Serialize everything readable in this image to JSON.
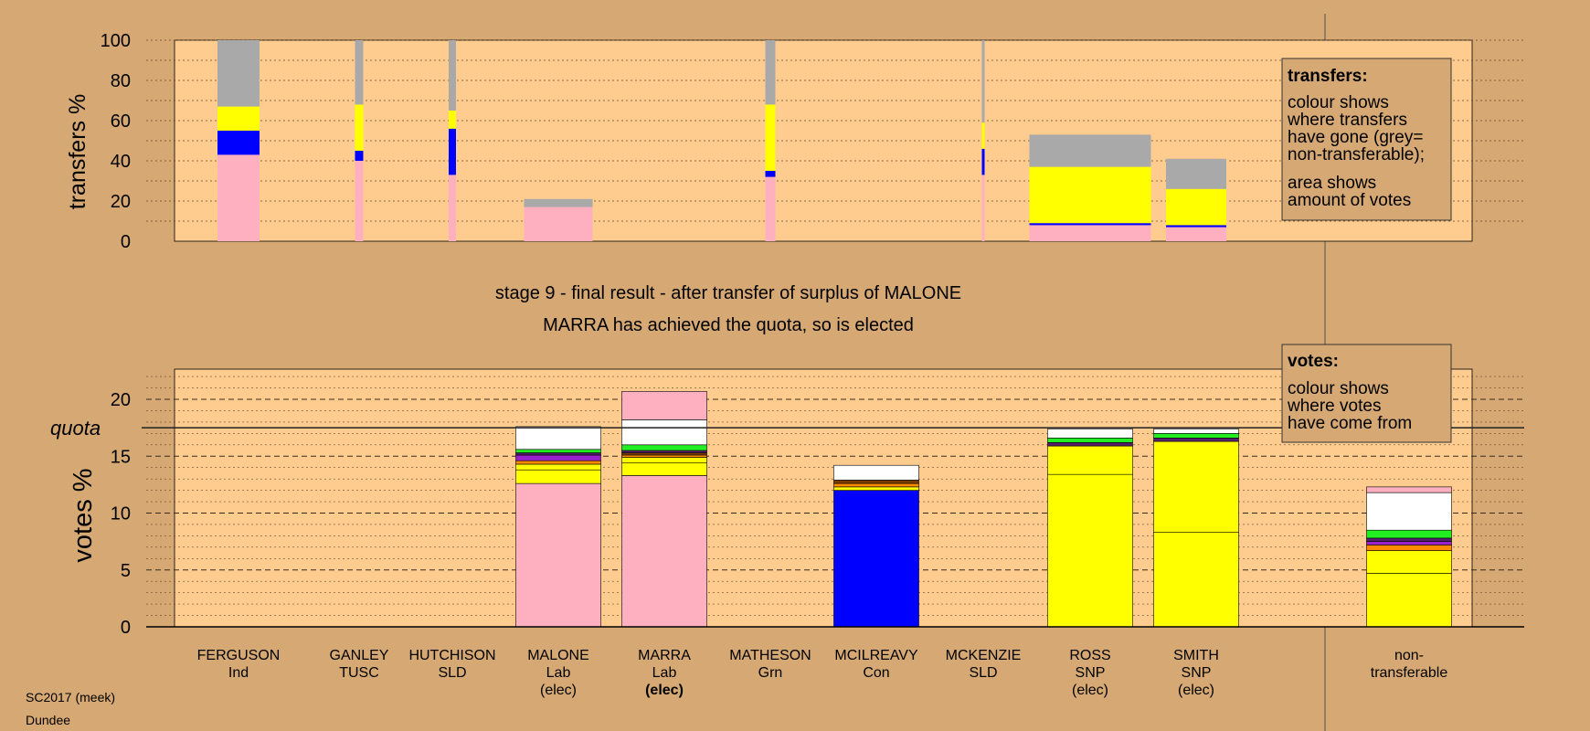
{
  "header": {
    "stage_line": "stage 9 - final result - after transfer of surplus of MALONE",
    "elected_line": "MARRA has achieved the quota, so is elected"
  },
  "footer": {
    "election": "SC2017 (meek)",
    "place": "Dundee"
  },
  "colors": {
    "pink": "#ffb0c0",
    "blue": "#0000ff",
    "yellow": "#ffff00",
    "grey": "#a9a9a9",
    "white": "#ffffff",
    "green": "#22ee22",
    "purple": "#9a22cc",
    "darkpurple": "#55206a",
    "orange": "#ff8c00",
    "brown": "#7a3b00",
    "panel": "#ffcc90",
    "bg": "#d5a874"
  },
  "candidates": [
    {
      "name": "FERGUSON",
      "party": "Ind",
      "status": ""
    },
    {
      "name": "GANLEY",
      "party": "TUSC",
      "status": ""
    },
    {
      "name": "HUTCHISON",
      "party": "SLD",
      "status": ""
    },
    {
      "name": "MALONE",
      "party": "Lab",
      "status": "(elec)"
    },
    {
      "name": "MARRA",
      "party": "Lab",
      "status": "(elec)",
      "bold_status": true
    },
    {
      "name": "MATHESON",
      "party": "Grn",
      "status": ""
    },
    {
      "name": "MCILREAVY",
      "party": "Con",
      "status": ""
    },
    {
      "name": "MCKENZIE",
      "party": "SLD",
      "status": ""
    },
    {
      "name": "ROSS",
      "party": "SNP",
      "status": "(elec)"
    },
    {
      "name": "SMITH",
      "party": "SNP",
      "status": "(elec)"
    },
    {
      "name": "non-",
      "party": "transferable",
      "status": ""
    }
  ],
  "transfers_legend": {
    "title": "transfers:",
    "lines1": [
      "colour shows",
      "where transfers",
      "have gone (grey=",
      "non-transferable);"
    ],
    "lines2": [
      "area shows",
      "amount of votes"
    ]
  },
  "votes_legend": {
    "title": "votes:",
    "lines": [
      "colour shows",
      "where votes",
      "have come from"
    ]
  },
  "chart_data": [
    {
      "type": "bar",
      "ylabel": "transfers %",
      "ylim": [
        0,
        100
      ],
      "yticks": [
        0,
        20,
        40,
        60,
        80,
        100
      ],
      "grid": true,
      "bars": [
        {
          "candidate": "FERGUSON",
          "segments": [
            [
              "pink",
              43
            ],
            [
              "blue",
              12
            ],
            [
              "yellow",
              12
            ],
            [
              "grey",
              33
            ]
          ]
        },
        {
          "candidate": "GANLEY",
          "segments": [
            [
              "pink",
              40
            ],
            [
              "blue",
              5
            ],
            [
              "yellow",
              23
            ],
            [
              "grey",
              32
            ]
          ]
        },
        {
          "candidate": "HUTCHISON",
          "segments": [
            [
              "pink",
              33
            ],
            [
              "blue",
              23
            ],
            [
              "yellow",
              9
            ],
            [
              "grey",
              35
            ]
          ]
        },
        {
          "candidate": "MALONE",
          "segments": [
            [
              "pink",
              17
            ],
            [
              "grey",
              4
            ]
          ]
        },
        {
          "candidate": "MATHESON",
          "segments": [
            [
              "pink",
              32
            ],
            [
              "blue",
              3
            ],
            [
              "yellow",
              33
            ],
            [
              "grey",
              32
            ]
          ]
        },
        {
          "candidate": "MCKENZIE",
          "segments": [
            [
              "pink",
              33
            ],
            [
              "blue",
              13
            ],
            [
              "yellow",
              13
            ],
            [
              "grey",
              41
            ]
          ]
        },
        {
          "candidate": "ROSS",
          "segments": [
            [
              "pink",
              8
            ],
            [
              "blue",
              1
            ],
            [
              "yellow",
              28
            ],
            [
              "grey",
              16
            ]
          ]
        },
        {
          "candidate": "SMITH",
          "segments": [
            [
              "pink",
              7
            ],
            [
              "blue",
              1
            ],
            [
              "yellow",
              18
            ],
            [
              "grey",
              15
            ]
          ]
        }
      ]
    },
    {
      "type": "bar",
      "ylabel": "votes %",
      "quota_label": "quota",
      "quota": 17.5,
      "ylim": [
        0,
        22
      ],
      "yticks": [
        0,
        5,
        10,
        15,
        20
      ],
      "grid": true,
      "bars": [
        {
          "candidate": "MALONE",
          "segments": [
            [
              "pink",
              12.6
            ],
            [
              "yellow",
              1.2
            ],
            [
              "yellow",
              0.5
            ],
            [
              "orange",
              0.3
            ],
            [
              "purple",
              0.5
            ],
            [
              "darkpurple",
              0.2
            ],
            [
              "green",
              0.3
            ],
            [
              "white",
              2.0
            ]
          ]
        },
        {
          "candidate": "MARRA",
          "segments": [
            [
              "pink",
              13.3
            ],
            [
              "yellow",
              1.1
            ],
            [
              "yellow",
              0.5
            ],
            [
              "orange",
              0.2
            ],
            [
              "brown",
              0.2
            ],
            [
              "darkpurple",
              0.2
            ],
            [
              "green",
              0.5
            ],
            [
              "white",
              2.2
            ],
            [
              "pink",
              2.5
            ]
          ]
        },
        {
          "candidate": "MCILREAVY",
          "segments": [
            [
              "blue",
              12.0
            ],
            [
              "yellow",
              0.3
            ],
            [
              "orange",
              0.3
            ],
            [
              "brown",
              0.3
            ],
            [
              "white",
              1.3
            ]
          ]
        },
        {
          "candidate": "ROSS",
          "segments": [
            [
              "yellow",
              13.4
            ],
            [
              "yellow",
              2.5
            ],
            [
              "darkpurple",
              0.3
            ],
            [
              "green",
              0.4
            ],
            [
              "white",
              0.8
            ]
          ]
        },
        {
          "candidate": "SMITH",
          "segments": [
            [
              "yellow",
              8.3
            ],
            [
              "yellow",
              8.0
            ],
            [
              "darkpurple",
              0.3
            ],
            [
              "green",
              0.4
            ],
            [
              "white",
              0.4
            ]
          ]
        },
        {
          "candidate": "non-transferable",
          "segments": [
            [
              "yellow",
              4.7
            ],
            [
              "yellow",
              2.0
            ],
            [
              "orange",
              0.5
            ],
            [
              "purple",
              0.3
            ],
            [
              "darkpurple",
              0.3
            ],
            [
              "green",
              0.7
            ],
            [
              "white",
              3.3
            ],
            [
              "pink",
              0.5
            ]
          ]
        }
      ]
    }
  ]
}
